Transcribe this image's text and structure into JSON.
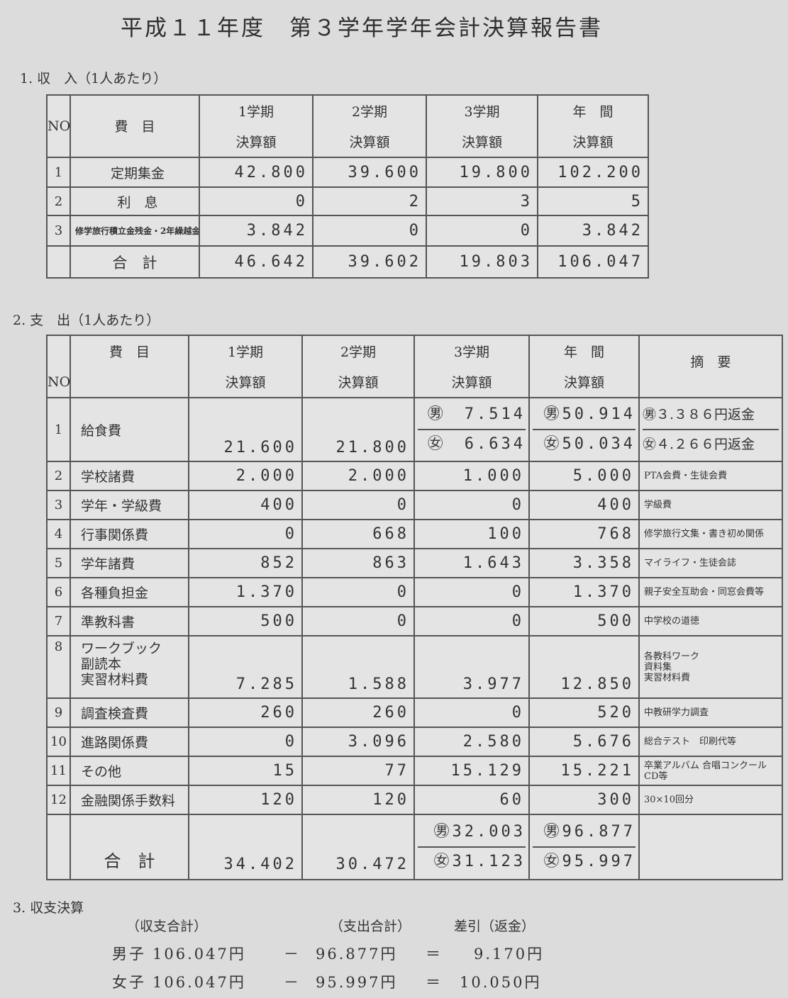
{
  "title": "平成１１年度　第３学年学年会計決算報告書",
  "income": {
    "heading": "1. 収　入（1人あたり）",
    "headers": {
      "no": "NO",
      "item": "費　目",
      "terms": [
        "1学期",
        "2学期",
        "3学期",
        "年　間"
      ],
      "sub": "決算額"
    },
    "rows": [
      {
        "no": "1",
        "item": "定期集金",
        "values": [
          "42.800",
          "39.600",
          "19.800",
          "102.200"
        ]
      },
      {
        "no": "2",
        "item": "利　息",
        "values": [
          "0",
          "2",
          "3",
          "5"
        ]
      },
      {
        "no": "3",
        "item": "修学旅行積立金残金・2年繰越金",
        "values": [
          "3.842",
          "0",
          "0",
          "3.842"
        ]
      }
    ],
    "total": {
      "item": "合　計",
      "values": [
        "46.642",
        "39.602",
        "19.803",
        "106.047"
      ]
    }
  },
  "expense": {
    "heading": "2. 支　出（1人あたり）",
    "headers": {
      "no": "NO",
      "item": "費　目",
      "terms": [
        "1学期",
        "2学期",
        "3学期",
        "年　間"
      ],
      "sub": "決算額",
      "remarks": "摘　要"
    },
    "row1": {
      "no": "1",
      "item": "給食費",
      "t1": "21.600",
      "t2": "21.800",
      "t3_male": "㊚　7.514",
      "t3_female": "㊛　6.634",
      "year_male": "㊚50.914",
      "year_female": "㊛50.034",
      "remark_male": "㊚３.３８６円返金",
      "remark_female": "㊛４.２６６円返金"
    },
    "rows": [
      {
        "no": "2",
        "item": "学校諸費",
        "values": [
          "2.000",
          "2.000",
          "1.000",
          "5.000"
        ],
        "remark": "PTA会費・生徒会費"
      },
      {
        "no": "3",
        "item": "学年・学級費",
        "values": [
          "400",
          "0",
          "0",
          "400"
        ],
        "remark": "学級費"
      },
      {
        "no": "4",
        "item": "行事関係費",
        "values": [
          "0",
          "668",
          "100",
          "768"
        ],
        "remark": "修学旅行文集・書き初め関係"
      },
      {
        "no": "5",
        "item": "学年諸費",
        "values": [
          "852",
          "863",
          "1.643",
          "3.358"
        ],
        "remark": "マイライフ・生徒会誌"
      },
      {
        "no": "6",
        "item": "各種負担金",
        "values": [
          "1.370",
          "0",
          "0",
          "1.370"
        ],
        "remark": "親子安全互助会・同窓会費等"
      },
      {
        "no": "7",
        "item": "準教科書",
        "values": [
          "500",
          "0",
          "0",
          "500"
        ],
        "remark": "中学校の道徳"
      },
      {
        "no": "8",
        "item": "ワークブック\n副読本\n実習材料費",
        "values": [
          "7.285",
          "1.588",
          "3.977",
          "12.850"
        ],
        "remark": "各教科ワーク\n資料集\n実習材料費"
      },
      {
        "no": "9",
        "item": "調査検査費",
        "values": [
          "260",
          "260",
          "0",
          "520"
        ],
        "remark": "中教研学力調査"
      },
      {
        "no": "10",
        "item": "進路関係費",
        "values": [
          "0",
          "3.096",
          "2.580",
          "5.676"
        ],
        "remark": "総合テスト　印刷代等"
      },
      {
        "no": "11",
        "item": "その他",
        "values": [
          "15",
          "77",
          "15.129",
          "15.221"
        ],
        "remark": "卒業アルバム 合唱コンクールCD等"
      },
      {
        "no": "12",
        "item": "金融関係手数料",
        "values": [
          "120",
          "120",
          "60",
          "300"
        ],
        "remark": "30×10回分"
      }
    ],
    "total": {
      "item": "合　計",
      "t1": "34.402",
      "t2": "30.472",
      "t3_male": "㊚32.003",
      "t3_female": "㊛31.123",
      "year_male": "㊚96.877",
      "year_female": "㊛95.997"
    }
  },
  "balance": {
    "heading": "3. 収支決算",
    "col_income": "（収支合計）",
    "col_expense": "（支出合計）",
    "col_diff": "差引（返金）",
    "rows": [
      {
        "label": "男子",
        "income": "106.047円",
        "op": "－",
        "expense": "96.877円",
        "eq": "＝",
        "diff": "9.170円"
      },
      {
        "label": "女子",
        "income": "106.047円",
        "op": "－",
        "expense": "95.997円",
        "eq": "＝",
        "diff": "10.050円"
      }
    ]
  }
}
